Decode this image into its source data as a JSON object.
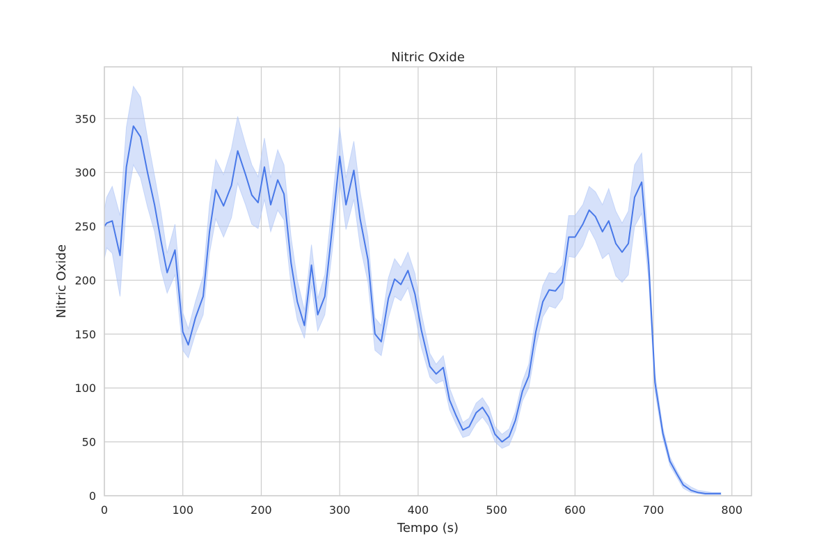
{
  "chart_data": {
    "type": "line",
    "title": "Nitric Oxide",
    "xlabel": "Tempo (s)",
    "ylabel": "Nitric Oxide",
    "xlim": [
      0,
      825
    ],
    "ylim": [
      0,
      398
    ],
    "xticks": [
      0,
      100,
      200,
      300,
      400,
      500,
      600,
      700,
      800
    ],
    "yticks": [
      0,
      50,
      100,
      150,
      200,
      250,
      300,
      350
    ],
    "grid": true,
    "line_color": "#4878e8",
    "band_color": "#aec4f6",
    "x": [
      0,
      3,
      10,
      20,
      28,
      37,
      46,
      55,
      64,
      72,
      80,
      90,
      100,
      107,
      116,
      126,
      134,
      142,
      152,
      162,
      170,
      180,
      188,
      196,
      204,
      212,
      221,
      229,
      238,
      246,
      255,
      264,
      272,
      281,
      290,
      300,
      308,
      318,
      326,
      336,
      345,
      353,
      362,
      370,
      378,
      387,
      396,
      404,
      415,
      423,
      432,
      440,
      448,
      457,
      465,
      474,
      482,
      490,
      498,
      507,
      516,
      524,
      533,
      541,
      550,
      559,
      567,
      575,
      584,
      592,
      600,
      610,
      618,
      626,
      635,
      643,
      652,
      660,
      668,
      676,
      685,
      694,
      702,
      712,
      721,
      730,
      738,
      748,
      757,
      766,
      775,
      786
    ],
    "y": [
      250,
      253,
      255,
      223,
      305,
      343,
      333,
      300,
      270,
      237,
      207,
      228,
      152,
      140,
      165,
      185,
      245,
      284,
      269,
      288,
      320,
      298,
      279,
      272,
      305,
      270,
      293,
      280,
      216,
      180,
      158,
      214,
      168,
      185,
      245,
      315,
      270,
      302,
      257,
      219,
      150,
      143,
      183,
      201,
      196,
      209,
      187,
      154,
      120,
      113,
      119,
      89,
      75,
      61,
      64,
      77,
      82,
      73,
      57,
      50,
      55,
      70,
      97,
      111,
      152,
      180,
      191,
      190,
      198,
      240,
      240,
      252,
      265,
      259,
      245,
      255,
      234,
      226,
      234,
      277,
      291,
      214,
      105,
      58,
      32,
      20,
      10,
      5,
      3,
      2,
      2,
      2
    ],
    "y_low": [
      220,
      230,
      225,
      185,
      270,
      307,
      295,
      268,
      245,
      210,
      188,
      205,
      135,
      128,
      150,
      168,
      225,
      257,
      240,
      258,
      290,
      270,
      252,
      248,
      275,
      245,
      265,
      256,
      195,
      163,
      146,
      195,
      153,
      168,
      224,
      292,
      247,
      275,
      232,
      198,
      135,
      130,
      165,
      185,
      181,
      193,
      168,
      138,
      110,
      104,
      107,
      80,
      67,
      54,
      56,
      67,
      73,
      65,
      50,
      44,
      47,
      61,
      88,
      100,
      138,
      166,
      176,
      174,
      183,
      222,
      221,
      232,
      248,
      237,
      220,
      225,
      204,
      198,
      205,
      250,
      262,
      200,
      97,
      53,
      28,
      17,
      7,
      3,
      2,
      1,
      1,
      1
    ],
    "y_high": [
      265,
      277,
      287,
      260,
      342,
      380,
      370,
      332,
      297,
      264,
      225,
      252,
      170,
      155,
      180,
      204,
      270,
      312,
      298,
      322,
      352,
      326,
      307,
      296,
      332,
      295,
      321,
      307,
      240,
      200,
      172,
      233,
      183,
      205,
      268,
      342,
      295,
      329,
      282,
      240,
      165,
      158,
      202,
      220,
      212,
      226,
      206,
      170,
      132,
      122,
      130,
      100,
      85,
      68,
      72,
      86,
      91,
      82,
      64,
      57,
      62,
      78,
      106,
      122,
      166,
      195,
      207,
      206,
      214,
      260,
      260,
      270,
      287,
      282,
      270,
      285,
      264,
      253,
      264,
      307,
      318,
      228,
      113,
      63,
      36,
      23,
      13,
      8,
      5,
      4,
      3,
      3
    ]
  }
}
